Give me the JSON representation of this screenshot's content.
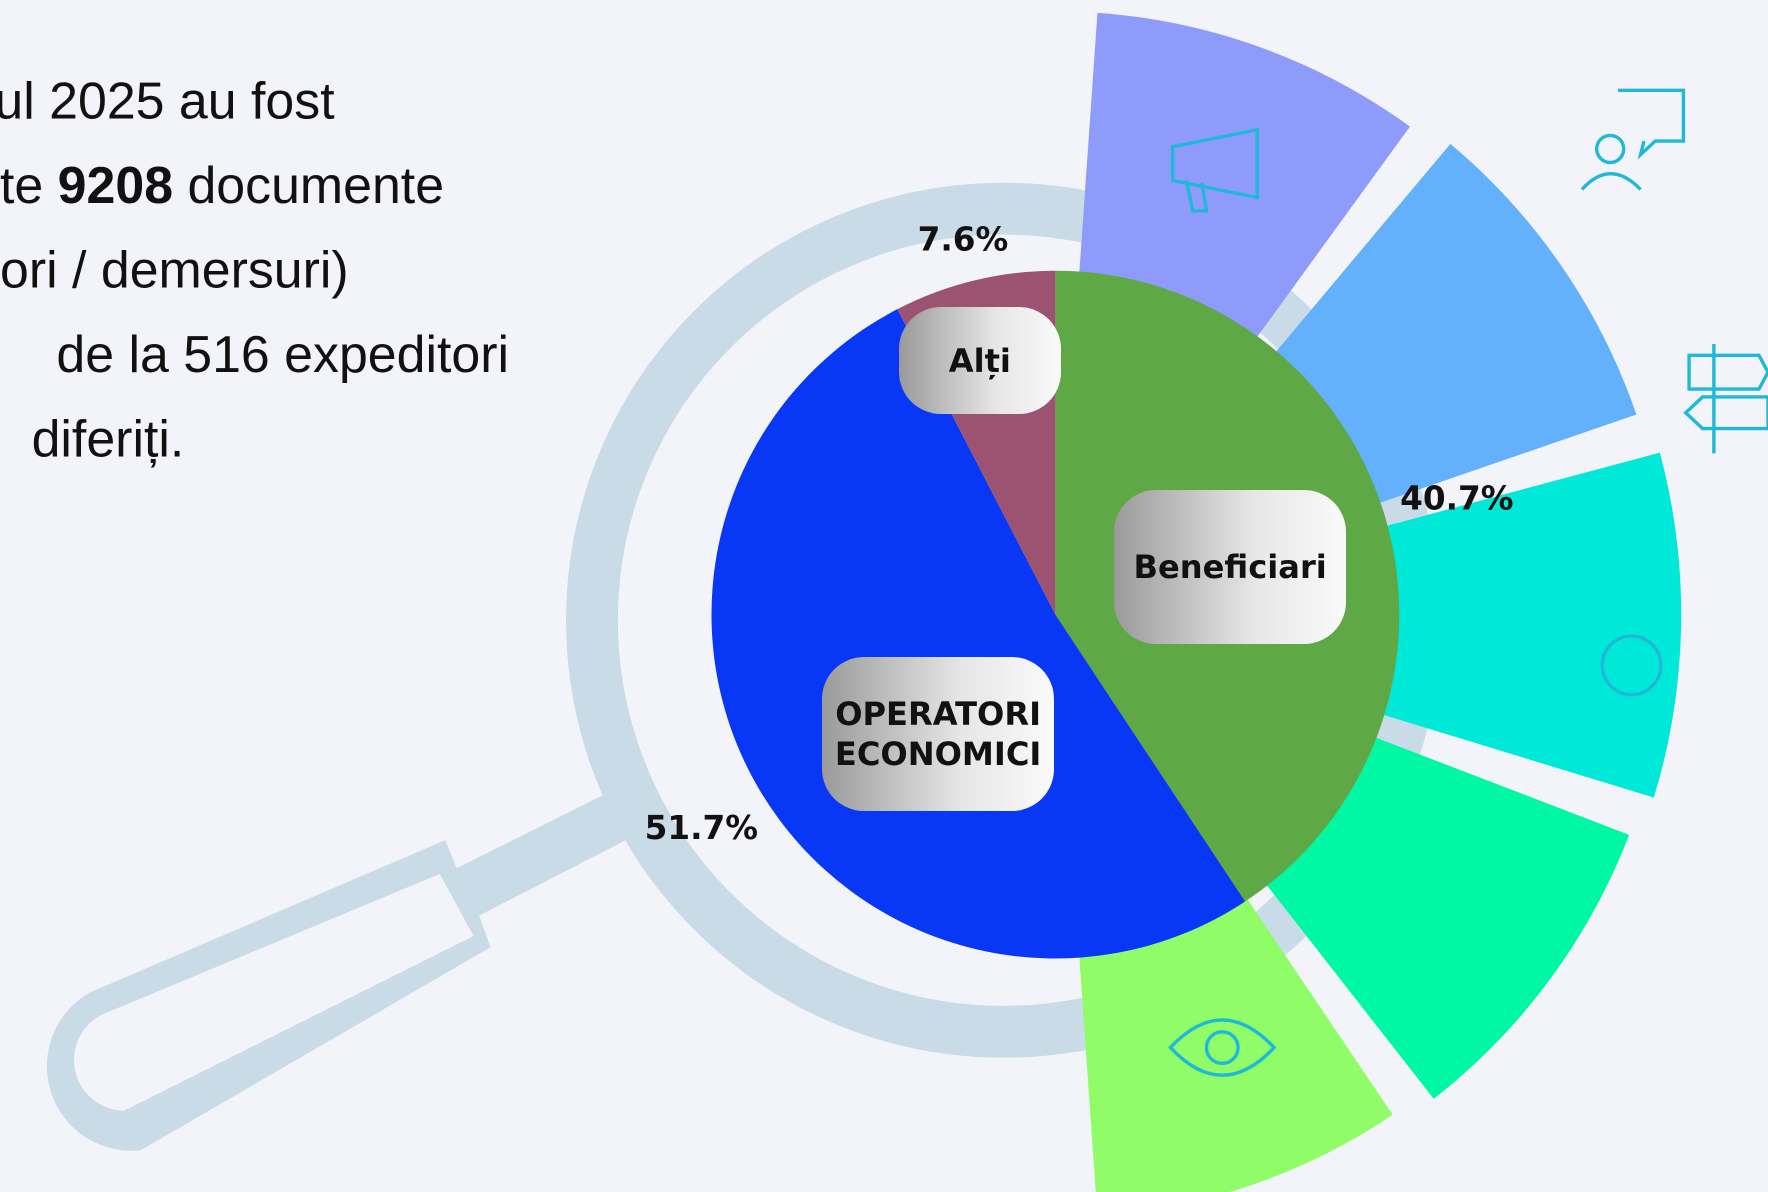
{
  "chart_data": {
    "type": "pie",
    "categories": [
      "Beneficiari",
      "OPERATORI ECONOMICI",
      "Alți"
    ],
    "values": [
      40.7,
      51.7,
      7.6
    ],
    "value_labels": [
      "40.7%",
      "51.7%",
      "7.6%"
    ],
    "colors": [
      "#5ea945",
      "#0837f5",
      "#9b5371"
    ],
    "annotation": [
      [
        {
          "text": "ul 2025 au fost"
        }
      ],
      [
        {
          "text": "te "
        },
        {
          "text": "9208",
          "bold": true
        },
        {
          "text": " documente"
        }
      ],
      [
        {
          "text": "ori / demersuri)"
        }
      ],
      [
        {
          "text": "de la 516 expeditori"
        }
      ],
      [
        {
          "text": "diferiți."
        }
      ]
    ]
  }
}
